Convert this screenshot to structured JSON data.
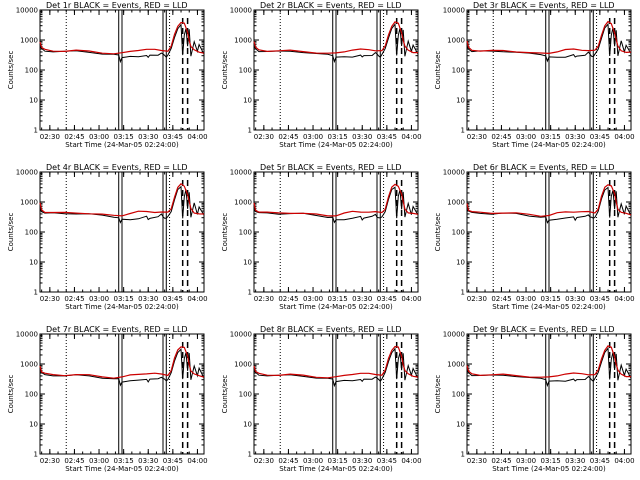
{
  "figure": {
    "background": "#ffffff",
    "events_color": "#000000",
    "lld_color": "#cc0000"
  },
  "chart_data": [
    {
      "type": "line",
      "title": "Det 1r BLACK = Events, RED = LLD",
      "variant": 0
    },
    {
      "type": "line",
      "title": "Det 2r BLACK = Events, RED = LLD",
      "variant": 1
    },
    {
      "type": "line",
      "title": "Det 3r BLACK = Events, RED = LLD",
      "variant": 2
    },
    {
      "type": "line",
      "title": "Det 4r BLACK = Events, RED = LLD",
      "variant": 3
    },
    {
      "type": "line",
      "title": "Det 5r BLACK = Events, RED = LLD",
      "variant": 4
    },
    {
      "type": "line",
      "title": "Det 6r BLACK = Events, RED = LLD",
      "variant": 5
    },
    {
      "type": "line",
      "title": "Det 7r BLACK = Events, RED = LLD",
      "variant": 6
    },
    {
      "type": "line",
      "title": "Det 8r BLACK = Events, RED = LLD",
      "variant": 7
    },
    {
      "type": "line",
      "title": "Det 9r BLACK = Events, RED = LLD",
      "variant": 8
    }
  ],
  "shared": {
    "xlabel": "Start Time (24-Mar-05 02:24:00)",
    "ylabel": "Counts/sec",
    "x_ticks": [
      "02:30",
      "02:45",
      "03:00",
      "03:15",
      "03:30",
      "03:45",
      "04:00"
    ],
    "x_tick_minutes": [
      6,
      21,
      36,
      51,
      66,
      81,
      96
    ],
    "xlim_minutes": [
      0,
      100
    ],
    "y_ticks": [
      "1",
      "10",
      "100",
      "1000",
      "10000"
    ],
    "y_tick_values": [
      1,
      10,
      100,
      1000,
      10000
    ],
    "ylim": [
      1,
      10000
    ],
    "yscale": "log",
    "dotted_vlines_minutes": [
      16,
      79
    ],
    "solid_vlines_minutes": [
      48,
      50,
      75,
      77
    ],
    "dashed_vlines_minutes": [
      87,
      90
    ],
    "lld_series": {
      "name": "LLD",
      "x": [
        0,
        1,
        3,
        8,
        15,
        22,
        30,
        38,
        45,
        50,
        55,
        60,
        65,
        70,
        74,
        78,
        80,
        82,
        84,
        86,
        88,
        90,
        91,
        92,
        94,
        97,
        100
      ],
      "y": [
        900,
        550,
        470,
        440,
        430,
        440,
        420,
        380,
        350,
        360,
        420,
        470,
        480,
        470,
        460,
        440,
        600,
        1500,
        3000,
        3900,
        3500,
        1800,
        1000,
        600,
        450,
        400,
        380
      ]
    },
    "events_series": {
      "name": "Events",
      "x": [
        0,
        1,
        3,
        8,
        15,
        22,
        30,
        38,
        45,
        48,
        49,
        50,
        55,
        60,
        65,
        66,
        67,
        72,
        74,
        75,
        76,
        77,
        78,
        80,
        82,
        84,
        86,
        87,
        88,
        89,
        90,
        91,
        92,
        94,
        96,
        97,
        100
      ],
      "y": [
        600,
        500,
        430,
        420,
        410,
        420,
        400,
        350,
        320,
        310,
        200,
        260,
        270,
        280,
        320,
        260,
        300,
        320,
        380,
        330,
        300,
        280,
        320,
        500,
        1200,
        2500,
        3200,
        300,
        1500,
        2500,
        600,
        2200,
        300,
        900,
        400,
        700,
        350
      ]
    }
  }
}
